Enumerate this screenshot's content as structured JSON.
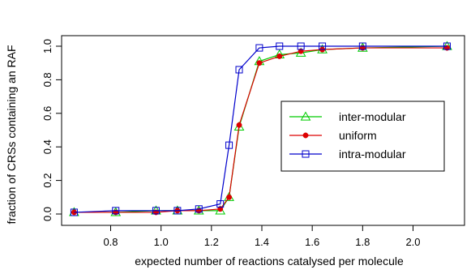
{
  "chart_data": {
    "type": "line",
    "title": "",
    "xlabel": "expected number of reactions catalysed per molecule",
    "ylabel": "fraction of CRSs containing an RAF",
    "xlim": [
      0.6,
      2.2
    ],
    "ylim": [
      0.0,
      1.0
    ],
    "x_ticks": [
      0.8,
      1.0,
      1.2,
      1.4,
      1.6,
      1.8,
      2.0
    ],
    "x_tick_labels": [
      "0.8",
      "1.0",
      "1.2",
      "1.4",
      "1.6",
      "1.8",
      "2.0"
    ],
    "y_ticks": [
      0.0,
      0.2,
      0.4,
      0.6,
      0.8,
      1.0
    ],
    "y_tick_labels": [
      "0.0",
      "0.2",
      "0.4",
      "0.6",
      "0.8",
      "1.0"
    ],
    "grid": false,
    "legend_position": "right",
    "x": [
      0.655,
      0.82,
      0.98,
      1.065,
      1.15,
      1.235,
      1.27,
      1.31,
      1.39,
      1.47,
      1.555,
      1.64,
      1.8,
      2.135
    ],
    "series": [
      {
        "name": "inter-modular",
        "color": "#00cc00",
        "marker": "triangle",
        "values": [
          0.01,
          0.01,
          0.02,
          0.02,
          0.02,
          0.02,
          0.1,
          0.52,
          0.91,
          0.95,
          0.96,
          0.98,
          0.99,
          1.0
        ]
      },
      {
        "name": "uniform",
        "color": "#dd0000",
        "marker": "dot",
        "values": [
          0.01,
          0.01,
          0.01,
          0.02,
          0.02,
          0.03,
          0.1,
          0.53,
          0.9,
          0.94,
          0.97,
          0.98,
          0.99,
          0.99
        ]
      },
      {
        "name": "intra-modular",
        "color": "#0000cc",
        "marker": "square",
        "values": [
          0.01,
          0.02,
          0.02,
          0.02,
          0.03,
          0.06,
          0.41,
          0.86,
          0.99,
          1.0,
          1.0,
          1.0,
          1.0,
          1.0
        ]
      }
    ]
  }
}
